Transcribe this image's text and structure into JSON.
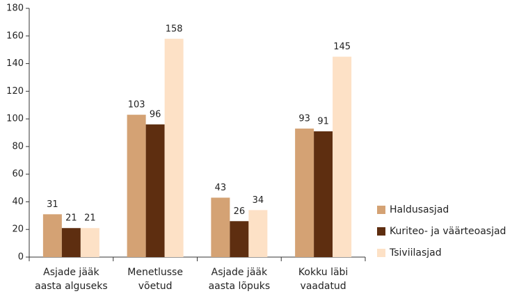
{
  "chart_data": {
    "type": "bar",
    "categories": [
      "Asjade jääk\naasta alguseks",
      "Menetlusse\nvõetud",
      "Asjade jääk\naasta lõpuks",
      "Kokku läbi\nvaadatud"
    ],
    "series": [
      {
        "name": "Haldusasjad",
        "color": "#d4a274",
        "values": [
          31,
          103,
          43,
          93
        ]
      },
      {
        "name": "Kuriteo- ja väärteoasjad",
        "color": "#5e2e10",
        "values": [
          21,
          96,
          26,
          91
        ]
      },
      {
        "name": "Tsiviilasjad",
        "color": "#fde1c6",
        "values": [
          21,
          158,
          34,
          145
        ]
      }
    ],
    "ylim": [
      0,
      180
    ],
    "yticks": [
      0,
      20,
      40,
      60,
      80,
      100,
      120,
      140,
      160,
      180
    ],
    "grid": false,
    "legend": "right"
  }
}
